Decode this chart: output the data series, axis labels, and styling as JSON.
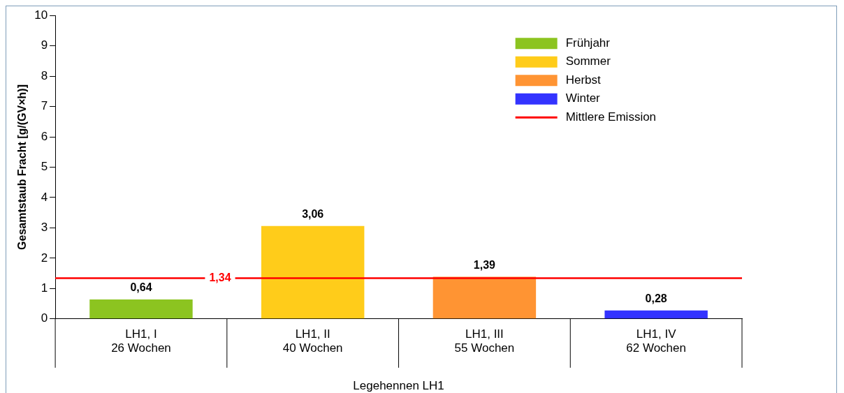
{
  "chart_data": {
    "type": "bar",
    "xlabel": "Legehennen LH1",
    "ylabel": "Gesamtstaub Fracht [g/(GV×h)]",
    "categories": [
      "LH1, I\n26 Wochen",
      "LH1, II\n40 Wochen",
      "LH1, III\n55 Wochen",
      "LH1, IV\n62 Wochen"
    ],
    "series": [
      {
        "name": "Frühjahr",
        "color": "#8cc420",
        "values": [
          0.64,
          null,
          null,
          null
        ],
        "value_labels": [
          "0,64",
          null,
          null,
          null
        ]
      },
      {
        "name": "Sommer",
        "color": "#ffcc1a",
        "values": [
          null,
          3.06,
          null,
          null
        ],
        "value_labels": [
          null,
          "3,06",
          null,
          null
        ]
      },
      {
        "name": "Herbst",
        "color": "#ff9433",
        "values": [
          null,
          null,
          1.39,
          null
        ],
        "value_labels": [
          null,
          null,
          "1,39",
          null
        ]
      },
      {
        "name": "Winter",
        "color": "#3333ff",
        "values": [
          null,
          null,
          null,
          0.28
        ],
        "value_labels": [
          null,
          null,
          null,
          "0,28"
        ]
      }
    ],
    "ref_lines": [
      {
        "axis": "y",
        "value": 1.34,
        "label": "Mittlere Emission",
        "color": "#ff0000"
      }
    ],
    "annotations": [
      {
        "text": "1,34",
        "y": 1.34
      }
    ],
    "ylim": [
      0,
      10
    ],
    "yticks": [
      0,
      1,
      2,
      3,
      4,
      5,
      6,
      7,
      8,
      9,
      10
    ],
    "grid": false,
    "legend": "top right"
  }
}
